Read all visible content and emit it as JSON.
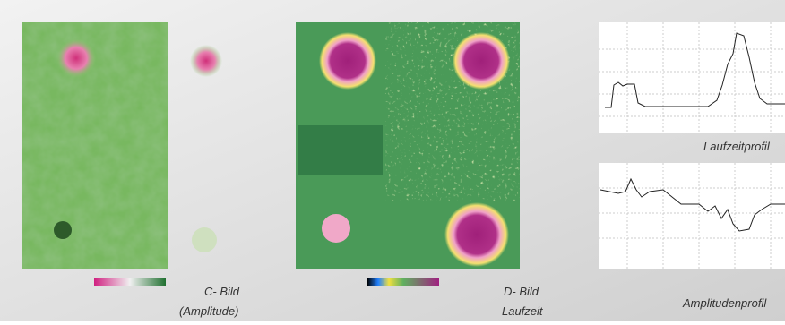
{
  "captions": {
    "c_bild": "C- Bild",
    "c_bild_sub": "(Amplitude)",
    "d_bild": "D- Bild",
    "d_bild_sub": "Laufzeit",
    "profile_top": "Laufzeitprofil",
    "profile_bottom": "Amplitudenprofil"
  }
}
